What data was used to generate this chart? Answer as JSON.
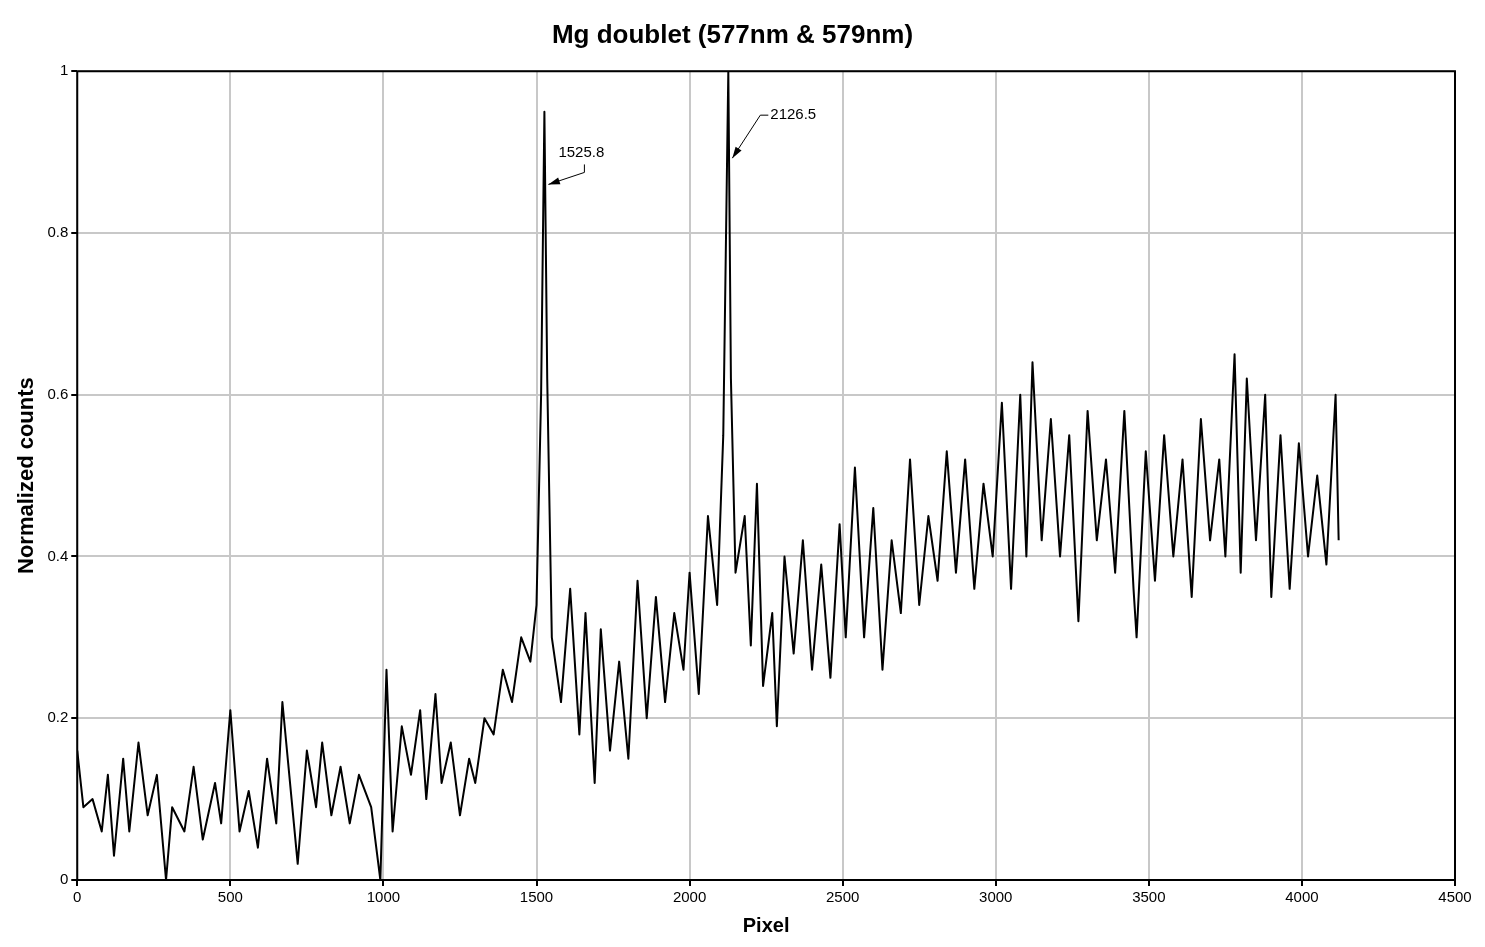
{
  "chart_data": {
    "type": "line",
    "title": "Mg doublet (577nm & 579nm)",
    "xlabel": "Pixel",
    "ylabel": "Normalized counts",
    "xlim": [
      0,
      4500
    ],
    "xticks": [
      0,
      500,
      1000,
      1500,
      2000,
      2500,
      3000,
      3500,
      4000,
      4500
    ],
    "ylim": [
      0,
      1
    ],
    "yticks": [
      0,
      0.2,
      0.4,
      0.6,
      0.8,
      1
    ],
    "grid": true,
    "legend": false,
    "marker": "none",
    "line_style": "solid",
    "annotations": [
      {
        "text": "1525.8",
        "x": 1525.8,
        "y": 0.86
      },
      {
        "text": "2126.5",
        "x": 2126.5,
        "y": 0.89
      }
    ],
    "series": [
      {
        "color": "#000000",
        "x": [
          0,
          20,
          50,
          80,
          100,
          120,
          150,
          170,
          200,
          230,
          260,
          290,
          310,
          350,
          380,
          410,
          450,
          470,
          500,
          530,
          560,
          590,
          620,
          650,
          670,
          700,
          720,
          750,
          780,
          800,
          830,
          860,
          890,
          920,
          960,
          990,
          1010,
          1030,
          1060,
          1090,
          1120,
          1140,
          1170,
          1190,
          1220,
          1250,
          1280,
          1300,
          1330,
          1360,
          1390,
          1420,
          1450,
          1480,
          1500,
          1515,
          1525.8,
          1535,
          1550,
          1580,
          1610,
          1640,
          1660,
          1690,
          1710,
          1740,
          1770,
          1800,
          1830,
          1860,
          1890,
          1920,
          1950,
          1980,
          2000,
          2030,
          2060,
          2090,
          2110,
          2126.5,
          2135,
          2150,
          2180,
          2200,
          2220,
          2240,
          2270,
          2285,
          2310,
          2340,
          2370,
          2400,
          2430,
          2460,
          2490,
          2510,
          2540,
          2570,
          2600,
          2630,
          2660,
          2690,
          2720,
          2750,
          2780,
          2810,
          2840,
          2870,
          2900,
          2930,
          2960,
          2990,
          3020,
          3050,
          3080,
          3100,
          3120,
          3150,
          3180,
          3210,
          3240,
          3270,
          3300,
          3330,
          3360,
          3390,
          3420,
          3450,
          3460,
          3490,
          3520,
          3550,
          3580,
          3610,
          3640,
          3670,
          3700,
          3730,
          3750,
          3780,
          3800,
          3820,
          3850,
          3880,
          3900,
          3930,
          3960,
          3990,
          4020,
          4050,
          4080,
          4110,
          4120
        ],
        "values": [
          0.16,
          0.09,
          0.1,
          0.06,
          0.13,
          0.03,
          0.15,
          0.06,
          0.17,
          0.08,
          0.13,
          0.0,
          0.09,
          0.06,
          0.14,
          0.05,
          0.12,
          0.07,
          0.21,
          0.06,
          0.11,
          0.04,
          0.15,
          0.07,
          0.22,
          0.1,
          0.02,
          0.16,
          0.09,
          0.17,
          0.08,
          0.14,
          0.07,
          0.13,
          0.09,
          0.0,
          0.26,
          0.06,
          0.19,
          0.13,
          0.21,
          0.1,
          0.23,
          0.12,
          0.17,
          0.08,
          0.15,
          0.12,
          0.2,
          0.18,
          0.26,
          0.22,
          0.3,
          0.27,
          0.34,
          0.6,
          0.95,
          0.62,
          0.3,
          0.22,
          0.36,
          0.18,
          0.33,
          0.12,
          0.31,
          0.16,
          0.27,
          0.15,
          0.37,
          0.2,
          0.35,
          0.22,
          0.33,
          0.26,
          0.38,
          0.23,
          0.45,
          0.34,
          0.55,
          1.0,
          0.62,
          0.38,
          0.45,
          0.29,
          0.49,
          0.24,
          0.33,
          0.19,
          0.4,
          0.28,
          0.42,
          0.26,
          0.39,
          0.25,
          0.44,
          0.3,
          0.51,
          0.3,
          0.46,
          0.26,
          0.42,
          0.33,
          0.52,
          0.34,
          0.45,
          0.37,
          0.53,
          0.38,
          0.52,
          0.36,
          0.49,
          0.4,
          0.59,
          0.36,
          0.6,
          0.4,
          0.64,
          0.42,
          0.57,
          0.4,
          0.55,
          0.32,
          0.58,
          0.42,
          0.52,
          0.38,
          0.58,
          0.36,
          0.3,
          0.53,
          0.37,
          0.55,
          0.4,
          0.52,
          0.35,
          0.57,
          0.42,
          0.52,
          0.4,
          0.65,
          0.38,
          0.62,
          0.42,
          0.6,
          0.35,
          0.55,
          0.36,
          0.54,
          0.4,
          0.5,
          0.39,
          0.6,
          0.42
        ]
      }
    ]
  }
}
